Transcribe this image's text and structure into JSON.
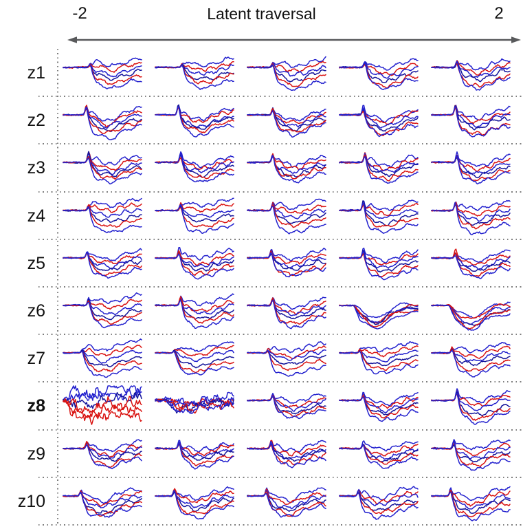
{
  "chart_data": {
    "type": "line-small-multiples",
    "title": "Latent traversal",
    "x_axis": {
      "label": "Latent traversal",
      "min": -2,
      "max": 2,
      "left_tick": "-2",
      "right_tick": "2"
    },
    "columns": 5,
    "traces_per_cell": 6,
    "colors": {
      "red": "#d91311",
      "blue": "#2321ce",
      "blue_dark": "#15159b",
      "axis_arrow": "#58595b",
      "dotted_guides": "#7d7d7d",
      "text": "#111111"
    },
    "trace_colors": [
      "#2321ce",
      "#d91311",
      "#2321ce",
      "#15159b",
      "#d91311",
      "#2321ce"
    ],
    "chaos_trace_colors": [
      "#2321ce",
      "#2321ce",
      "#15159b",
      "#d91311",
      "#d91311",
      "#d91311"
    ],
    "rows": [
      {
        "label": "z1",
        "bold": false,
        "cells": [
          {
            "seed": 11,
            "onset": 0.32,
            "spike": 0.35,
            "dip": 0.5,
            "spread": 0.9,
            "noise": 0.5
          },
          {
            "seed": 12,
            "onset": 0.32,
            "spike": 0.4,
            "dip": 0.5,
            "spread": 0.9,
            "noise": 0.5
          },
          {
            "seed": 13,
            "onset": 0.3,
            "spike": 0.45,
            "dip": 0.55,
            "spread": 0.85,
            "noise": 0.5
          },
          {
            "seed": 14,
            "onset": 0.3,
            "spike": 0.5,
            "dip": 0.65,
            "spread": 0.8,
            "noise": 0.5
          },
          {
            "seed": 15,
            "onset": 0.3,
            "spike": 0.55,
            "dip": 0.6,
            "spread": 0.8,
            "noise": 0.5
          }
        ]
      },
      {
        "label": "z2",
        "bold": false,
        "cells": [
          {
            "seed": 21,
            "onset": 0.27,
            "spike": 0.95,
            "dip": 0.75,
            "spread": 0.65,
            "noise": 0.45
          },
          {
            "seed": 22,
            "onset": 0.27,
            "spike": 0.95,
            "dip": 0.7,
            "spread": 0.65,
            "noise": 0.45
          },
          {
            "seed": 23,
            "onset": 0.3,
            "spike": 0.85,
            "dip": 0.7,
            "spread": 0.6,
            "noise": 0.5
          },
          {
            "seed": 24,
            "onset": 0.28,
            "spike": 0.8,
            "dip": 0.7,
            "spread": 0.65,
            "noise": 0.5
          },
          {
            "seed": 25,
            "onset": 0.28,
            "spike": 0.9,
            "dip": 0.7,
            "spread": 0.7,
            "noise": 0.5
          }
        ]
      },
      {
        "label": "z3",
        "bold": false,
        "cells": [
          {
            "seed": 31,
            "onset": 0.3,
            "spike": 0.8,
            "dip": 0.6,
            "spread": 0.65,
            "noise": 0.5
          },
          {
            "seed": 32,
            "onset": 0.3,
            "spike": 0.85,
            "dip": 0.6,
            "spread": 0.65,
            "noise": 0.5
          },
          {
            "seed": 33,
            "onset": 0.3,
            "spike": 0.8,
            "dip": 0.6,
            "spread": 0.6,
            "noise": 0.5
          },
          {
            "seed": 34,
            "onset": 0.3,
            "spike": 0.75,
            "dip": 0.6,
            "spread": 0.65,
            "noise": 0.5
          },
          {
            "seed": 35,
            "onset": 0.3,
            "spike": 0.8,
            "dip": 0.65,
            "spread": 0.65,
            "noise": 0.5
          }
        ]
      },
      {
        "label": "z4",
        "bold": false,
        "cells": [
          {
            "seed": 41,
            "onset": 0.3,
            "spike": 0.5,
            "dip": 0.45,
            "spread": 1,
            "noise": 0.45
          },
          {
            "seed": 42,
            "onset": 0.3,
            "spike": 0.55,
            "dip": 0.45,
            "spread": 1,
            "noise": 0.45
          },
          {
            "seed": 43,
            "onset": 0.3,
            "spike": 0.7,
            "dip": 0.5,
            "spread": 0.95,
            "noise": 0.45
          },
          {
            "seed": 44,
            "onset": 0.28,
            "spike": 0.85,
            "dip": 0.55,
            "spread": 0.9,
            "noise": 0.45
          },
          {
            "seed": 45,
            "onset": 0.28,
            "spike": 0.85,
            "dip": 0.55,
            "spread": 0.9,
            "noise": 0.45
          }
        ]
      },
      {
        "label": "z5",
        "bold": false,
        "cells": [
          {
            "seed": 51,
            "onset": 0.28,
            "spike": 0.75,
            "dip": 0.55,
            "spread": 0.7,
            "noise": 0.5
          },
          {
            "seed": 52,
            "onset": 0.28,
            "spike": 0.8,
            "dip": 0.55,
            "spread": 0.7,
            "noise": 0.5
          },
          {
            "seed": 53,
            "onset": 0.28,
            "spike": 0.75,
            "dip": 0.55,
            "spread": 0.7,
            "noise": 0.5
          },
          {
            "seed": 54,
            "onset": 0.28,
            "spike": 0.7,
            "dip": 0.6,
            "spread": 0.75,
            "noise": 0.5
          },
          {
            "seed": 55,
            "onset": 0.28,
            "spike": 0.7,
            "dip": 0.6,
            "spread": 0.7,
            "noise": 0.5
          }
        ]
      },
      {
        "label": "z6",
        "bold": false,
        "cells": [
          {
            "seed": 61,
            "onset": 0.3,
            "spike": 0.7,
            "dip": 0.5,
            "spread": 0.95,
            "noise": 0.4
          },
          {
            "seed": 62,
            "onset": 0.3,
            "spike": 0.85,
            "dip": 0.55,
            "spread": 0.85,
            "noise": 0.45
          },
          {
            "seed": 63,
            "onset": 0.3,
            "spike": 0.6,
            "dip": 0.65,
            "spread": 0.7,
            "noise": 0.45
          },
          {
            "seed": 64,
            "onset": 0.16,
            "spike": 0.05,
            "dip": 1,
            "spread": 0.35,
            "noise": 0.25,
            "smooth": 1
          },
          {
            "seed": 65,
            "onset": 0.2,
            "spike": 0.1,
            "dip": 1,
            "spread": 0.45,
            "noise": 0.3,
            "smooth": 1
          }
        ]
      },
      {
        "label": "z7",
        "bold": false,
        "cells": [
          {
            "seed": 71,
            "onset": 0.22,
            "spike": 0.3,
            "dip": 0.55,
            "spread": 1,
            "noise": 0.35
          },
          {
            "seed": 72,
            "onset": 0.22,
            "spike": 0.3,
            "dip": 0.55,
            "spread": 1,
            "noise": 0.35
          },
          {
            "seed": 73,
            "onset": 0.24,
            "spike": 0.35,
            "dip": 0.55,
            "spread": 0.95,
            "noise": 0.35
          },
          {
            "seed": 74,
            "onset": 0.24,
            "spike": 0.35,
            "dip": 0.5,
            "spread": 0.9,
            "noise": 0.4
          },
          {
            "seed": 75,
            "onset": 0.24,
            "spike": 0.5,
            "dip": 0.55,
            "spread": 0.9,
            "noise": 0.4
          }
        ]
      },
      {
        "label": "z8",
        "bold": true,
        "cells": [
          {
            "seed": 81,
            "onset": 0.02,
            "spike": 0,
            "dip": 0.3,
            "spread": 0.45,
            "noise": 1,
            "chaos": 1
          },
          {
            "seed": 82,
            "onset": 0.1,
            "spike": 0.15,
            "dip": 0.35,
            "spread": 0.35,
            "noise": 0.95,
            "chaos": 0.5
          },
          {
            "seed": 83,
            "onset": 0.3,
            "spike": 0.6,
            "dip": 0.55,
            "spread": 0.6,
            "noise": 0.5
          },
          {
            "seed": 84,
            "onset": 0.28,
            "spike": 0.65,
            "dip": 0.6,
            "spread": 0.65,
            "noise": 0.5
          },
          {
            "seed": 85,
            "onset": 0.3,
            "spike": 0.85,
            "dip": 0.6,
            "spread": 0.85,
            "noise": 0.5
          }
        ]
      },
      {
        "label": "z9",
        "bold": false,
        "cells": [
          {
            "seed": 91,
            "onset": 0.28,
            "spike": 0.6,
            "dip": 0.55,
            "spread": 0.65,
            "noise": 0.55
          },
          {
            "seed": 92,
            "onset": 0.28,
            "spike": 0.7,
            "dip": 0.55,
            "spread": 0.65,
            "noise": 0.55
          },
          {
            "seed": 93,
            "onset": 0.28,
            "spike": 0.7,
            "dip": 0.55,
            "spread": 0.65,
            "noise": 0.55
          },
          {
            "seed": 94,
            "onset": 0.28,
            "spike": 0.65,
            "dip": 0.55,
            "spread": 0.7,
            "noise": 0.55
          },
          {
            "seed": 95,
            "onset": 0.26,
            "spike": 0.65,
            "dip": 0.6,
            "spread": 0.75,
            "noise": 0.55
          }
        ]
      },
      {
        "label": "z10",
        "bold": false,
        "cells": [
          {
            "seed": 101,
            "onset": 0.2,
            "spike": 0.6,
            "dip": 0.7,
            "spread": 0.7,
            "noise": 0.55
          },
          {
            "seed": 102,
            "onset": 0.22,
            "spike": 0.6,
            "dip": 0.65,
            "spread": 0.7,
            "noise": 0.55
          },
          {
            "seed": 103,
            "onset": 0.22,
            "spike": 0.65,
            "dip": 0.65,
            "spread": 0.7,
            "noise": 0.55
          },
          {
            "seed": 104,
            "onset": 0.22,
            "spike": 0.6,
            "dip": 0.65,
            "spread": 0.7,
            "noise": 0.55
          },
          {
            "seed": 105,
            "onset": 0.22,
            "spike": 0.65,
            "dip": 0.75,
            "spread": 0.8,
            "noise": 0.55
          }
        ]
      }
    ]
  }
}
